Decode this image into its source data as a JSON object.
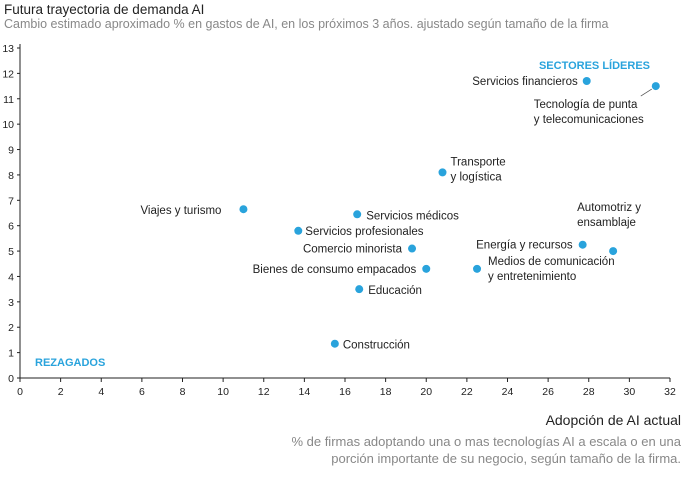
{
  "chart_data": {
    "type": "scatter",
    "title": "Futura trayectoria de demanda AI",
    "subtitle": "Cambio estimado aproximado % en gastos de AI, en los próximos 3 años. ajustado según tamaño de la firma",
    "xlabel": "Adopción de AI actual",
    "xlabel_sub": "% de firmas adoptando una o mas tecnologías AI a escala o en una porción importante de su negocio, según tamaño de la firma.",
    "xlim": [
      0,
      32
    ],
    "ylim": [
      0,
      13
    ],
    "xticks": [
      0,
      2,
      4,
      6,
      8,
      10,
      12,
      14,
      16,
      18,
      20,
      22,
      24,
      26,
      28,
      30,
      32
    ],
    "yticks": [
      0,
      1,
      2,
      3,
      4,
      5,
      6,
      7,
      8,
      9,
      10,
      11,
      12,
      13
    ],
    "grid": false,
    "point_color": "#29a3dc",
    "annotations": [
      {
        "text": "SECTORES LÍDERES",
        "position": "top-right"
      },
      {
        "text": "REZAGADOS",
        "position": "bottom-left"
      }
    ],
    "points": [
      {
        "label": [
          "Servicios financieros"
        ],
        "x": 27.9,
        "y": 11.7
      },
      {
        "label": [
          "Tecnología de punta",
          "y telecomunicaciones"
        ],
        "x": 31.3,
        "y": 11.5
      },
      {
        "label": [
          "Transporte",
          "y logística"
        ],
        "x": 20.8,
        "y": 8.1
      },
      {
        "label": [
          "Viajes y turismo"
        ],
        "x": 11.0,
        "y": 6.65
      },
      {
        "label": [
          "Servicios médicos"
        ],
        "x": 16.6,
        "y": 6.45
      },
      {
        "label": [
          "Servicios profesionales"
        ],
        "x": 13.7,
        "y": 5.8
      },
      {
        "label": [
          "Comercio minorista"
        ],
        "x": 19.3,
        "y": 5.1
      },
      {
        "label": [
          "Energía y recursos"
        ],
        "x": 27.7,
        "y": 5.25
      },
      {
        "label": [
          "Automotriz y",
          "ensamblaje"
        ],
        "x": 29.2,
        "y": 5.0
      },
      {
        "label": [
          "Bienes de consumo empacados"
        ],
        "x": 20.0,
        "y": 4.3
      },
      {
        "label": [
          "Medios de comunicación",
          "y entretenimiento"
        ],
        "x": 22.5,
        "y": 4.3
      },
      {
        "label": [
          "Educación"
        ],
        "x": 16.7,
        "y": 3.5
      },
      {
        "label": [
          "Construcción"
        ],
        "x": 15.5,
        "y": 1.35
      }
    ]
  }
}
